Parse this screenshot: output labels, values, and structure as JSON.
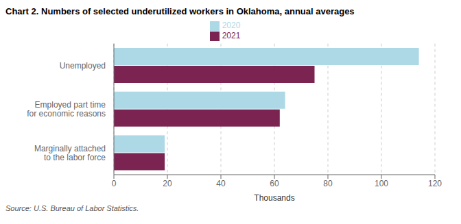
{
  "chart_data": {
    "type": "bar",
    "orientation": "horizontal",
    "title": "Chart 2.  Numbers of selected underutilized workers in Oklahoma, annual averages",
    "categories": [
      "Unemployed",
      "Employed part time\nfor economic reasons",
      "Marginally attached\nto the labor force"
    ],
    "series": [
      {
        "name": "2020",
        "color": "#add8e6",
        "values": [
          114,
          64,
          19
        ]
      },
      {
        "name": "2021",
        "color": "#7b2351",
        "values": [
          75,
          62,
          19
        ]
      }
    ],
    "xlabel": "Thousands",
    "xlim": [
      0,
      120
    ],
    "xticks": [
      0,
      20,
      40,
      60,
      80,
      100,
      120
    ],
    "grid": true,
    "legend": "top",
    "annotations": [
      "Source: U.S. Bureau of Labor Statistics."
    ]
  }
}
